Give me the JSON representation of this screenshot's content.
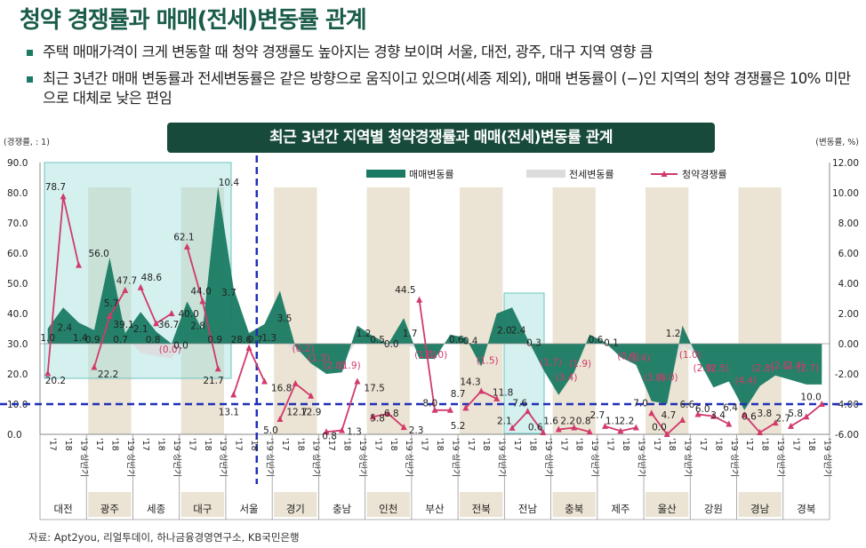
{
  "title": "청약 경쟁률과 매매(전세)변동률 관계",
  "bullets": [
    "주택 매매가격이 크게 변동할 때 청약 경쟁률도 높아지는 경향 보이며 서울, 대전, 광주, 대구 지역 영향 큼",
    "최근 3년간 매매 변동률과 전세변동률은 같은 방향으로 움직이고 있으며(세종 제외), 매매 변동률이 (−)인 지역의 청약 경쟁률은 10% 미만으로 대체로 낮은 편임"
  ],
  "source": "자료: Apt2you, 리얼투데이, 하나금융경영연구소, KB국민은행",
  "colors": {
    "sale": "#1a7a63",
    "jeonse": "#dcdcdc",
    "comp": "#d13a6b",
    "band": "#ebe3d3",
    "highlight": "#9fdedb",
    "dash": "#1f2fb8"
  },
  "chart_data": {
    "type": "combo",
    "title": "최근 3년간 지역별 청약경쟁률과 매매(전세)변동률 관계",
    "ylabel_left": "(경쟁률, : 1)",
    "ylabel_right": "(변동률, %)",
    "ylim_left": [
      0,
      90
    ],
    "ylim_right": [
      -6,
      12
    ],
    "yticks_left": [
      "0.0",
      "10.0",
      "20.0",
      "30.0",
      "40.0",
      "50.0",
      "60.0",
      "70.0",
      "80.0",
      "90.0"
    ],
    "yticks_right": [
      "-6.00",
      "-4.00",
      "-2.00",
      "0.00",
      "2.00",
      "4.00",
      "6.00",
      "8.00",
      "10.00",
      "12.00"
    ],
    "legend": [
      "매매변동률",
      "전세변동률",
      "청약경쟁률"
    ],
    "legend_position": "top-right",
    "period_labels": [
      "'17",
      "'18",
      "'19 상반기"
    ],
    "regions": [
      "대전",
      "광주",
      "세종",
      "대구",
      "서울",
      "경기",
      "충남",
      "인천",
      "부산",
      "전북",
      "전남",
      "충북",
      "제주",
      "울산",
      "강원",
      "경남",
      "경북"
    ],
    "shaded_regions": [
      "광주",
      "대구",
      "경기",
      "인천",
      "전북",
      "충북",
      "울산",
      "경남"
    ],
    "threshold_line": 10,
    "sale_rate": [
      1.0,
      2.4,
      1.4,
      0.9,
      5.7,
      0.7,
      2.1,
      0.8,
      0.0,
      2.8,
      0.9,
      10.4,
      3.7,
      0.7,
      1.3,
      3.5,
      -0.2,
      -1.3,
      -2.0,
      -1.9,
      1.2,
      0.5,
      0.0,
      1.7,
      -1.0,
      -1.0,
      0.6,
      0.4,
      -1.5,
      2.0,
      2.4,
      0.3,
      -1.7,
      -3.4,
      -1.9,
      0.6,
      0.1,
      -0.9,
      -1.4,
      -3.8,
      -4.0,
      1.2,
      -1.0,
      -2.9,
      -2.5,
      -4.4,
      -2.8,
      -2.1,
      -2.4,
      -2.7,
      -2.7
    ],
    "jeonse_rate": [
      0.4,
      1.0,
      0.8,
      0.6,
      2.0,
      0.5,
      -0.6,
      -0.8,
      -1.0,
      0.6,
      0.2,
      1.8,
      1.2,
      0.8,
      0.9,
      0.4,
      -0.5,
      -1.0,
      -1.4,
      -1.2,
      0.2,
      0.2,
      -0.2,
      -0.1,
      -0.3,
      -0.4,
      0.3,
      0.0,
      -0.6,
      0.6,
      0.4,
      -0.2,
      -0.8,
      -1.6,
      -1.1,
      0.2,
      -0.1,
      -0.6,
      -1.2,
      -2.6,
      -2.8,
      -0.1,
      -0.8,
      -1.8,
      -1.6,
      -2.9,
      -2.0,
      -1.6,
      -1.8,
      -1.9,
      -2.0
    ],
    "competition": [
      {
        "region": "대전",
        "values": [
          20.2,
          78.7,
          56.0
        ]
      },
      {
        "region": "광주",
        "values": [
          22.2,
          39.1,
          47.7
        ]
      },
      {
        "region": "세종",
        "values": [
          48.6,
          36.7,
          40.0
        ]
      },
      {
        "region": "대구",
        "values": [
          62.1,
          44.0,
          21.7
        ]
      },
      {
        "region": "서울",
        "values": [
          13.1,
          28.6,
          17.5
        ]
      },
      {
        "region": "경기",
        "values": [
          5.0,
          16.8,
          12.7
        ]
      },
      {
        "region": "충남",
        "values": [
          0.8,
          1.3,
          17.5
        ]
      },
      {
        "region": "인천",
        "values": [
          5.8,
          6.8,
          2.3
        ]
      },
      {
        "region": "부산",
        "values": [
          44.5,
          8.0,
          8.0
        ]
      },
      {
        "region": "전북",
        "values": [
          8.7,
          14.3,
          11.8
        ]
      },
      {
        "region": "전남",
        "values": [
          2.1,
          7.6,
          0.6
        ]
      },
      {
        "region": "충북",
        "values": [
          1.6,
          2.2,
          0.8
        ]
      },
      {
        "region": "제주",
        "values": [
          2.7,
          1.1,
          2.2
        ]
      },
      {
        "region": "울산",
        "values": [
          7.0,
          0.0,
          4.7
        ]
      },
      {
        "region": "강원",
        "values": [
          6.6,
          6.0,
          3.4
        ]
      },
      {
        "region": "경남",
        "values": [
          6.4,
          0.6,
          3.8
        ]
      },
      {
        "region": "경북",
        "values": [
          2.7,
          5.8,
          10.0
        ]
      }
    ],
    "labels": [
      {
        "text": "78.7",
        "slot": 1,
        "y": 82.0,
        "axis": "L",
        "color": "#222"
      },
      {
        "text": "20.2",
        "slot": 1,
        "y": 18.0,
        "axis": "L",
        "color": "#222"
      },
      {
        "text": "56.0",
        "slot": 3.8,
        "y": 60.0,
        "axis": "L",
        "color": "#222"
      },
      {
        "text": "1.0",
        "slot": 0.5,
        "y": 32.0,
        "axis": "L",
        "color": "#222"
      },
      {
        "text": "2.4",
        "slot": 1.6,
        "y": 35.5,
        "axis": "L",
        "color": "#222"
      },
      {
        "text": "1.4",
        "slot": 2.6,
        "y": 32.0,
        "axis": "L",
        "color": "#222"
      },
      {
        "text": "0.9",
        "slot": 3.4,
        "y": 31.5,
        "axis": "L",
        "color": "#222"
      },
      {
        "text": "5.7",
        "slot": 4.6,
        "y": 43.5,
        "axis": "L",
        "color": "#222"
      },
      {
        "text": "47.7",
        "slot": 5.6,
        "y": 51.0,
        "axis": "L",
        "color": "#222"
      },
      {
        "text": "39.1",
        "slot": 5.4,
        "y": 36.5,
        "axis": "L",
        "color": "#222"
      },
      {
        "text": "22.2",
        "slot": 4.4,
        "y": 20.0,
        "axis": "L",
        "color": "#222"
      },
      {
        "text": "0.7",
        "slot": 5.2,
        "y": 31.5,
        "axis": "L",
        "color": "#222"
      },
      {
        "text": "2.1",
        "slot": 6.5,
        "y": 35.0,
        "axis": "L",
        "color": "#222"
      },
      {
        "text": "48.6",
        "slot": 7.2,
        "y": 52.0,
        "axis": "L",
        "color": "#222"
      },
      {
        "text": "0.8",
        "slot": 7.3,
        "y": 31.5,
        "axis": "L",
        "color": "#222"
      },
      {
        "text": "36.7",
        "slot": 8.3,
        "y": 36.5,
        "axis": "L",
        "color": "#222"
      },
      {
        "text": "(0.0)",
        "slot": 8.4,
        "y": 28.2,
        "axis": "L",
        "color": "#d13a6b"
      },
      {
        "text": "62.1",
        "slot": 9.3,
        "y": 65.5,
        "axis": "L",
        "color": "#222"
      },
      {
        "text": "40.0",
        "slot": 9.6,
        "y": 40.0,
        "axis": "L",
        "color": "#222"
      },
      {
        "text": "0.0",
        "slot": 9.1,
        "y": 29.5,
        "axis": "L",
        "color": "#222"
      },
      {
        "text": "44.0",
        "slot": 10.4,
        "y": 47.5,
        "axis": "L",
        "color": "#222"
      },
      {
        "text": "2.8",
        "slot": 10.2,
        "y": 36.0,
        "axis": "L",
        "color": "#222"
      },
      {
        "text": "0.9",
        "slot": 11.3,
        "y": 31.5,
        "axis": "L",
        "color": "#222"
      },
      {
        "text": "21.7",
        "slot": 11.2,
        "y": 18.0,
        "axis": "L",
        "color": "#222"
      },
      {
        "text": "10.4",
        "slot": 12.2,
        "y": 83.5,
        "axis": "L",
        "color": "#222"
      },
      {
        "text": "3.7",
        "slot": 12.2,
        "y": 47.0,
        "axis": "L",
        "color": "#222"
      },
      {
        "text": "13.1",
        "slot": 12.2,
        "y": 7.5,
        "axis": "L",
        "color": "#222"
      },
      {
        "text": "28.6",
        "slot": 13.0,
        "y": 31.5,
        "axis": "L",
        "color": "#222"
      },
      {
        "text": "0.7",
        "slot": 13.9,
        "y": 31.5,
        "axis": "L",
        "color": "#222"
      },
      {
        "text": "1.3",
        "slot": 14.8,
        "y": 32.0,
        "axis": "L",
        "color": "#222"
      },
      {
        "text": "3.5",
        "slot": 15.8,
        "y": 38.5,
        "axis": "L",
        "color": "#222"
      },
      {
        "text": "16.8",
        "slot": 15.6,
        "y": 15.5,
        "axis": "L",
        "color": "#222"
      },
      {
        "text": "5.0",
        "slot": 14.9,
        "y": 1.5,
        "axis": "L",
        "color": "#222"
      },
      {
        "text": "12.7",
        "slot": 16.6,
        "y": 7.5,
        "axis": "L",
        "color": "#222"
      },
      {
        "text": "12.9",
        "slot": 17.5,
        "y": 7.5,
        "axis": "L",
        "color": "#222"
      },
      {
        "text": "(0.2)",
        "slot": 17.0,
        "y": 28.5,
        "axis": "L",
        "color": "#d13a6b"
      },
      {
        "text": "(1.3)",
        "slot": 18.0,
        "y": 25.5,
        "axis": "L",
        "color": "#d13a6b"
      },
      {
        "text": "(2.0)",
        "slot": 19.0,
        "y": 23.0,
        "axis": "L",
        "color": "#d13a6b"
      },
      {
        "text": "(1.9)",
        "slot": 20.0,
        "y": 23.0,
        "axis": "L",
        "color": "#d13a6b"
      },
      {
        "text": "0.8",
        "slot": 18.7,
        "y": -0.5,
        "axis": "L",
        "color": "#222"
      },
      {
        "text": "1.3",
        "slot": 20.3,
        "y": 1.0,
        "axis": "L",
        "color": "#222"
      },
      {
        "text": "17.5",
        "slot": 21.6,
        "y": 15.5,
        "axis": "L",
        "color": "#222"
      },
      {
        "text": "1.2",
        "slot": 20.9,
        "y": 33.5,
        "axis": "L",
        "color": "#222"
      },
      {
        "text": "0.5",
        "slot": 21.8,
        "y": 31.5,
        "axis": "L",
        "color": "#222"
      },
      {
        "text": "0.0",
        "slot": 22.7,
        "y": 30.0,
        "axis": "L",
        "color": "#222"
      },
      {
        "text": "5.8",
        "slot": 21.8,
        "y": 5.5,
        "axis": "L",
        "color": "#222"
      },
      {
        "text": "6.8",
        "slot": 22.7,
        "y": 7.0,
        "axis": "L",
        "color": "#222"
      },
      {
        "text": "2.3",
        "slot": 24.3,
        "y": 1.5,
        "axis": "L",
        "color": "#222"
      },
      {
        "text": "1.7",
        "slot": 23.9,
        "y": 33.5,
        "axis": "L",
        "color": "#222"
      },
      {
        "text": "44.5",
        "slot": 23.6,
        "y": 48.0,
        "axis": "L",
        "color": "#222"
      },
      {
        "text": "(1.0)",
        "slot": 24.9,
        "y": 26.5,
        "axis": "L",
        "color": "#d13a6b"
      },
      {
        "text": "(1.0)",
        "slot": 25.6,
        "y": 26.5,
        "axis": "L",
        "color": "#d13a6b"
      },
      {
        "text": "8.0",
        "slot": 25.2,
        "y": 10.5,
        "axis": "L",
        "color": "#222"
      },
      {
        "text": "5.2",
        "slot": 27.0,
        "y": 3.0,
        "axis": "L",
        "color": "#222"
      },
      {
        "text": "8.7",
        "slot": 27.0,
        "y": 13.5,
        "axis": "L",
        "color": "#222"
      },
      {
        "text": "14.3",
        "slot": 27.8,
        "y": 17.5,
        "axis": "L",
        "color": "#222"
      },
      {
        "text": "0.6",
        "slot": 26.9,
        "y": 31.5,
        "axis": "L",
        "color": "#222"
      },
      {
        "text": "0.4",
        "slot": 27.8,
        "y": 31.0,
        "axis": "L",
        "color": "#222"
      },
      {
        "text": "(1.5)",
        "slot": 28.9,
        "y": 24.5,
        "axis": "L",
        "color": "#d13a6b"
      },
      {
        "text": "11.8",
        "slot": 29.9,
        "y": 14.0,
        "axis": "L",
        "color": "#222"
      },
      {
        "text": "2.0",
        "slot": 30.0,
        "y": 34.5,
        "axis": "L",
        "color": "#222"
      },
      {
        "text": "2.4",
        "slot": 30.9,
        "y": 34.5,
        "axis": "L",
        "color": "#222"
      },
      {
        "text": "0.3",
        "slot": 31.9,
        "y": 30.5,
        "axis": "L",
        "color": "#222"
      },
      {
        "text": "2.1",
        "slot": 30.0,
        "y": 4.5,
        "axis": "L",
        "color": "#222"
      },
      {
        "text": "7.6",
        "slot": 31.0,
        "y": 10.5,
        "axis": "L",
        "color": "#222"
      },
      {
        "text": "0.6",
        "slot": 32.0,
        "y": 2.5,
        "axis": "L",
        "color": "#222"
      },
      {
        "text": "(1.7)",
        "slot": 33.0,
        "y": 24.0,
        "axis": "L",
        "color": "#d13a6b"
      },
      {
        "text": "(3.4)",
        "slot": 34.0,
        "y": 19.0,
        "axis": "L",
        "color": "#d13a6b"
      },
      {
        "text": "(1.9)",
        "slot": 34.9,
        "y": 23.5,
        "axis": "L",
        "color": "#d13a6b"
      },
      {
        "text": "1.6",
        "slot": 33.0,
        "y": 4.5,
        "axis": "L",
        "color": "#222"
      },
      {
        "text": "2.2",
        "slot": 34.1,
        "y": 4.5,
        "axis": "L",
        "color": "#222"
      },
      {
        "text": "0.8",
        "slot": 35.1,
        "y": 4.5,
        "axis": "L",
        "color": "#222"
      },
      {
        "text": "0.6",
        "slot": 35.9,
        "y": 31.5,
        "axis": "L",
        "color": "#222"
      },
      {
        "text": "0.1",
        "slot": 36.9,
        "y": 30.5,
        "axis": "L",
        "color": "#222"
      },
      {
        "text": "2.7",
        "slot": 36.0,
        "y": 6.5,
        "axis": "L",
        "color": "#222"
      },
      {
        "text": "1.1",
        "slot": 37.0,
        "y": 4.5,
        "axis": "L",
        "color": "#222"
      },
      {
        "text": "2.2",
        "slot": 37.9,
        "y": 4.5,
        "axis": "L",
        "color": "#222"
      },
      {
        "text": "(0.9)",
        "slot": 38.0,
        "y": 26.0,
        "axis": "L",
        "color": "#d13a6b"
      },
      {
        "text": "(1.4)",
        "slot": 38.7,
        "y": 25.5,
        "axis": "L",
        "color": "#d13a6b"
      },
      {
        "text": "(3.8)",
        "slot": 39.7,
        "y": 19.0,
        "axis": "L",
        "color": "#d13a6b"
      },
      {
        "text": "(4.0)",
        "slot": 40.5,
        "y": 19.0,
        "axis": "L",
        "color": "#d13a6b"
      },
      {
        "text": "7.0",
        "slot": 38.8,
        "y": 10.5,
        "axis": "L",
        "color": "#222"
      },
      {
        "text": "0.0",
        "slot": 40.0,
        "y": 2.5,
        "axis": "L",
        "color": "#222"
      },
      {
        "text": "4.7",
        "slot": 40.6,
        "y": 6.5,
        "axis": "L",
        "color": "#222"
      },
      {
        "text": "1.2",
        "slot": 40.9,
        "y": 33.5,
        "axis": "L",
        "color": "#222"
      },
      {
        "text": "(1.0)",
        "slot": 42.0,
        "y": 26.5,
        "axis": "L",
        "color": "#d13a6b"
      },
      {
        "text": "6.6",
        "slot": 41.8,
        "y": 10.0,
        "axis": "L",
        "color": "#222"
      },
      {
        "text": "6.0",
        "slot": 42.8,
        "y": 8.5,
        "axis": "L",
        "color": "#222"
      },
      {
        "text": "3.4",
        "slot": 43.8,
        "y": 6.5,
        "axis": "L",
        "color": "#222"
      },
      {
        "text": "(2.9)",
        "slot": 42.9,
        "y": 22.0,
        "axis": "L",
        "color": "#d13a6b"
      },
      {
        "text": "(2.5)",
        "slot": 43.8,
        "y": 22.0,
        "axis": "L",
        "color": "#d13a6b"
      },
      {
        "text": "6.4",
        "slot": 44.6,
        "y": 9.0,
        "axis": "L",
        "color": "#222"
      },
      {
        "text": "(4.4)",
        "slot": 45.6,
        "y": 18.0,
        "axis": "L",
        "color": "#d13a6b"
      },
      {
        "text": "(2.8)",
        "slot": 46.7,
        "y": 22.0,
        "axis": "L",
        "color": "#d13a6b"
      },
      {
        "text": "0.6",
        "slot": 45.8,
        "y": 6.0,
        "axis": "L",
        "color": "#222"
      },
      {
        "text": "3.8",
        "slot": 46.8,
        "y": 7.0,
        "axis": "L",
        "color": "#222"
      },
      {
        "text": "(2.1)",
        "slot": 47.9,
        "y": 23.0,
        "axis": "L",
        "color": "#d13a6b"
      },
      {
        "text": "(2.4)",
        "slot": 48.7,
        "y": 23.0,
        "axis": "L",
        "color": "#d13a6b"
      },
      {
        "text": "(2.7)",
        "slot": 49.6,
        "y": 22.0,
        "axis": "L",
        "color": "#d13a6b"
      },
      {
        "text": "2.7",
        "slot": 48.0,
        "y": 5.5,
        "axis": "L",
        "color": "#222"
      },
      {
        "text": "5.8",
        "slot": 48.8,
        "y": 7.0,
        "axis": "L",
        "color": "#222"
      },
      {
        "text": "10.0",
        "slot": 49.8,
        "y": 12.5,
        "axis": "L",
        "color": "#222"
      }
    ]
  }
}
